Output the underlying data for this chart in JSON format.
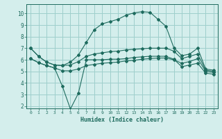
{
  "title": "",
  "xlabel": "Humidex (Indice chaleur)",
  "background_color": "#d4eeec",
  "grid_color": "#9ecfcc",
  "line_color": "#1e6b5e",
  "xlim": [
    -0.5,
    23.5
  ],
  "ylim": [
    1.8,
    10.8
  ],
  "yticks": [
    2,
    3,
    4,
    5,
    6,
    7,
    8,
    9,
    10
  ],
  "xticks": [
    0,
    1,
    2,
    3,
    4,
    5,
    6,
    7,
    8,
    9,
    10,
    11,
    12,
    13,
    14,
    15,
    16,
    17,
    18,
    19,
    20,
    21,
    22,
    23
  ],
  "curve_top": [
    [
      0,
      7.0
    ],
    [
      1,
      6.3
    ],
    [
      2,
      5.8
    ],
    [
      3,
      5.55
    ],
    [
      4,
      5.5
    ],
    [
      5,
      5.8
    ],
    [
      6,
      6.4
    ],
    [
      7,
      7.5
    ],
    [
      8,
      8.6
    ],
    [
      9,
      9.1
    ],
    [
      10,
      9.3
    ],
    [
      11,
      9.5
    ],
    [
      12,
      9.85
    ],
    [
      13,
      10.05
    ],
    [
      14,
      10.15
    ],
    [
      15,
      10.1
    ],
    [
      16,
      9.5
    ],
    [
      17,
      8.9
    ],
    [
      18,
      7.05
    ],
    [
      19,
      6.35
    ],
    [
      20,
      6.5
    ],
    [
      21,
      7.0
    ],
    [
      22,
      5.2
    ],
    [
      23,
      5.1
    ]
  ],
  "curve_mid": [
    [
      0,
      7.0
    ],
    [
      1,
      6.3
    ],
    [
      2,
      5.8
    ],
    [
      3,
      5.55
    ],
    [
      4,
      5.5
    ],
    [
      5,
      5.55
    ],
    [
      6,
      5.85
    ],
    [
      7,
      6.3
    ],
    [
      8,
      6.5
    ],
    [
      9,
      6.6
    ],
    [
      10,
      6.7
    ],
    [
      11,
      6.75
    ],
    [
      12,
      6.85
    ],
    [
      13,
      6.9
    ],
    [
      14,
      6.95
    ],
    [
      15,
      7.0
    ],
    [
      16,
      7.0
    ],
    [
      17,
      7.0
    ],
    [
      18,
      6.75
    ],
    [
      19,
      6.1
    ],
    [
      20,
      6.3
    ],
    [
      21,
      6.5
    ],
    [
      22,
      5.1
    ],
    [
      23,
      5.0
    ]
  ],
  "curve_upper_flat": [
    [
      0,
      6.1
    ],
    [
      1,
      5.75
    ],
    [
      2,
      5.5
    ],
    [
      3,
      5.3
    ],
    [
      4,
      5.05
    ],
    [
      5,
      5.05
    ],
    [
      6,
      5.2
    ],
    [
      7,
      5.5
    ],
    [
      8,
      5.6
    ],
    [
      9,
      5.7
    ],
    [
      10,
      5.75
    ],
    [
      11,
      5.8
    ],
    [
      12,
      5.9
    ],
    [
      13,
      5.95
    ],
    [
      14,
      6.05
    ],
    [
      15,
      6.1
    ],
    [
      16,
      6.15
    ],
    [
      17,
      6.15
    ],
    [
      18,
      6.0
    ],
    [
      19,
      5.7
    ],
    [
      20,
      5.85
    ],
    [
      21,
      6.1
    ],
    [
      22,
      5.0
    ],
    [
      23,
      4.9
    ]
  ],
  "curve_bottom": [
    [
      0,
      6.1
    ],
    [
      1,
      5.75
    ],
    [
      2,
      5.5
    ],
    [
      3,
      5.3
    ],
    [
      4,
      3.7
    ],
    [
      5,
      1.75
    ],
    [
      6,
      3.1
    ],
    [
      7,
      6.0
    ],
    [
      8,
      6.0
    ],
    [
      9,
      6.0
    ],
    [
      10,
      6.05
    ],
    [
      11,
      6.05
    ],
    [
      12,
      6.1
    ],
    [
      13,
      6.2
    ],
    [
      14,
      6.25
    ],
    [
      15,
      6.3
    ],
    [
      16,
      6.3
    ],
    [
      17,
      6.3
    ],
    [
      18,
      6.05
    ],
    [
      19,
      5.4
    ],
    [
      20,
      5.55
    ],
    [
      21,
      5.7
    ],
    [
      22,
      4.85
    ],
    [
      23,
      4.75
    ]
  ]
}
